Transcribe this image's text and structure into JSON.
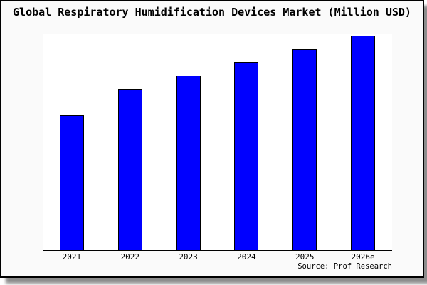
{
  "page": {
    "background": "#ffffff"
  },
  "frame": {
    "background": "#fafafa",
    "border_color": "#000000",
    "shadow_color": "rgba(0,0,0,0.45)"
  },
  "chart_data": {
    "type": "bar",
    "title": "Global Respiratory Humidification Devices Market (Million USD)",
    "categories": [
      "2021",
      "2022",
      "2023",
      "2024",
      "2025",
      "2026e"
    ],
    "values": [
      189,
      226,
      245,
      264,
      282,
      301
    ],
    "value_note": "Chart displays no y-axis or data labels; values are relative bar heights in screen pixels (baseline 0 = x-axis, plot height 303)",
    "xlabel": "",
    "ylabel": "",
    "ylim": [
      0,
      303
    ],
    "grid": false,
    "legend": false,
    "bar_color": "#0000ff",
    "bar_border_color": "#000000",
    "axis_color": "#000000",
    "plot_background": "#ffffff",
    "source": "Source: Prof Research"
  }
}
